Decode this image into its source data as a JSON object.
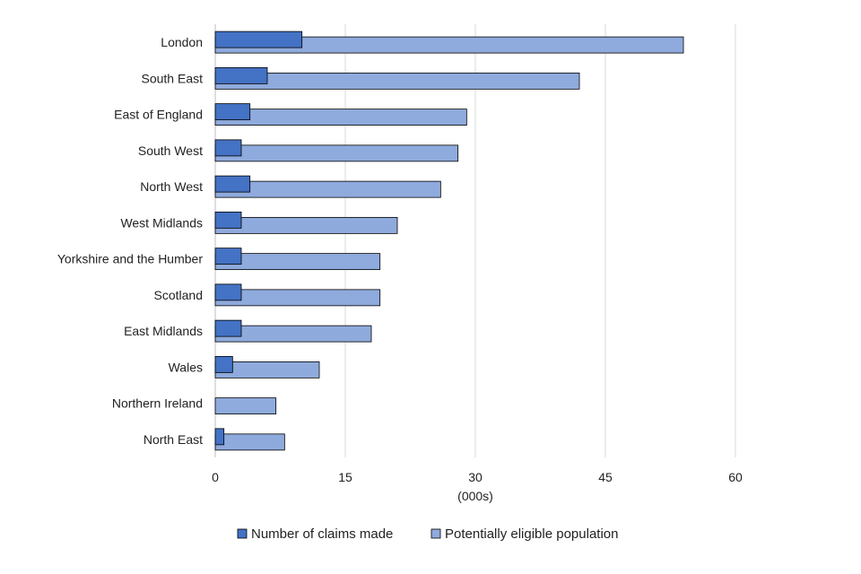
{
  "chart_data": {
    "type": "bar",
    "orientation": "horizontal",
    "categories": [
      "London",
      "South East",
      "East of England",
      "South West",
      "North West",
      "West Midlands",
      "Yorkshire and the Humber",
      "Scotland",
      "East Midlands",
      "Wales",
      "Northern Ireland",
      "North East"
    ],
    "series": [
      {
        "name": "Number of claims made",
        "color": "#4472c4",
        "values": [
          10,
          6,
          4,
          3,
          4,
          3,
          3,
          3,
          3,
          2,
          0,
          1
        ]
      },
      {
        "name": "Potentially eligible population",
        "color": "#8faadc",
        "values": [
          54,
          42,
          29,
          28,
          26,
          21,
          19,
          19,
          18,
          12,
          7,
          8
        ]
      }
    ],
    "xlabel": "(000s)",
    "ylabel": "",
    "xlim": [
      0,
      60
    ],
    "x_ticks": [
      "0",
      "15",
      "30",
      "45",
      "60"
    ],
    "grid": "vertical",
    "legend_position": "bottom"
  }
}
